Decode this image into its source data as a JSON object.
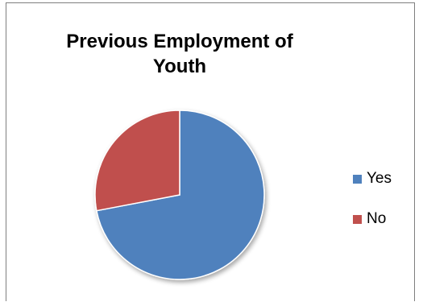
{
  "chart_data": {
    "type": "pie",
    "title": "Previous Employment of\nYouth",
    "categories": [
      "Yes",
      "No"
    ],
    "values": [
      72,
      28
    ],
    "colors": [
      "#4f81bd",
      "#c0504d"
    ],
    "legend_position": "right",
    "start_angle_deg": 0,
    "direction": "clockwise"
  }
}
